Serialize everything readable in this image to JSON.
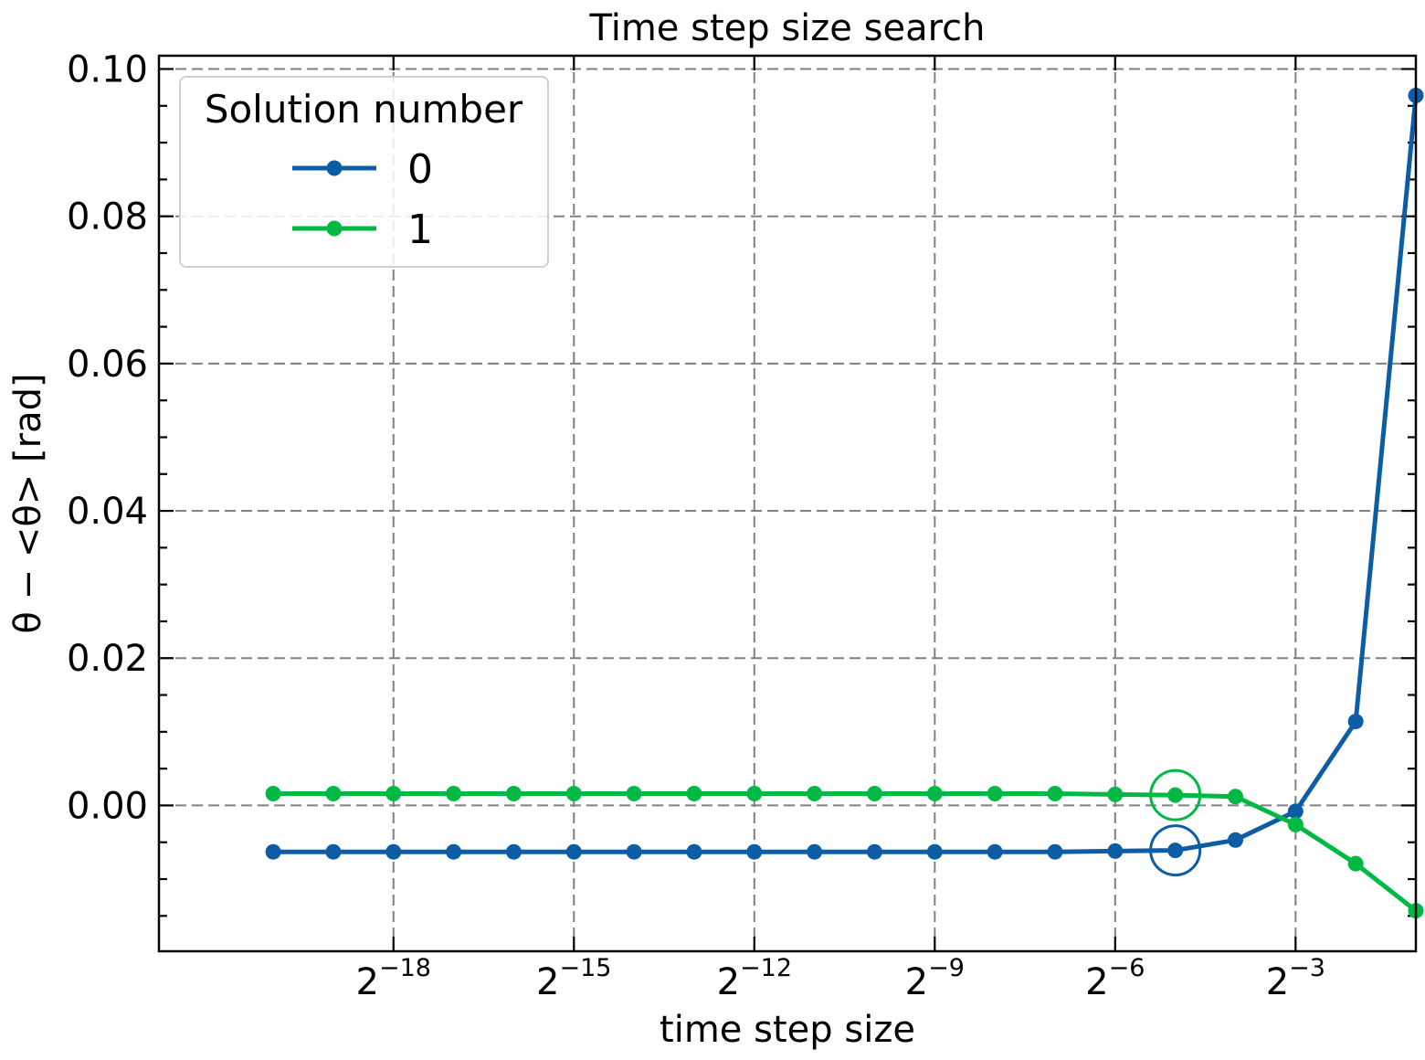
{
  "chart_data": {
    "type": "line",
    "title": "Time step size search",
    "xlabel": "time step size",
    "ylabel": "θ − <θ>  [rad]",
    "x_scale": "log2",
    "x_ticks": [
      {
        "exp": -18,
        "base": "2",
        "power": "−18"
      },
      {
        "exp": -15,
        "base": "2",
        "power": "−15"
      },
      {
        "exp": -12,
        "base": "2",
        "power": "−12"
      },
      {
        "exp": -9,
        "base": "2",
        "power": "−9"
      },
      {
        "exp": -6,
        "base": "2",
        "power": "−6"
      },
      {
        "exp": -3,
        "base": "2",
        "power": "−3"
      }
    ],
    "xlim_exp": [
      -21.9,
      -1.0
    ],
    "ylim": [
      -0.0198,
      0.1018
    ],
    "y_ticks": [
      {
        "value": 0.0,
        "label": "0.00"
      },
      {
        "value": 0.02,
        "label": "0.02"
      },
      {
        "value": 0.04,
        "label": "0.04"
      },
      {
        "value": 0.06,
        "label": "0.06"
      },
      {
        "value": 0.08,
        "label": "0.08"
      },
      {
        "value": 0.1,
        "label": "0.10"
      }
    ],
    "y_minor_step": 0.005,
    "x_exponents": [
      -20,
      -19,
      -18,
      -17,
      -16,
      -15,
      -14,
      -13,
      -12,
      -11,
      -10,
      -9,
      -8,
      -7,
      -6,
      -5,
      -4,
      -3,
      -2,
      -1
    ],
    "grid": true,
    "legend": {
      "title": "Solution number",
      "position": "top-left"
    },
    "series": [
      {
        "name": "0",
        "color": "#0C5DA5",
        "values": [
          -0.0063,
          -0.0063,
          -0.0063,
          -0.0063,
          -0.0063,
          -0.0063,
          -0.0063,
          -0.0063,
          -0.0063,
          -0.0063,
          -0.0063,
          -0.0063,
          -0.0063,
          -0.0063,
          -0.0062,
          -0.0061,
          -0.0047,
          -0.0008,
          0.0114,
          0.0964
        ],
        "highlight_exp": -5
      },
      {
        "name": "1",
        "color": "#00B945",
        "values": [
          0.0016,
          0.0016,
          0.0016,
          0.0016,
          0.0016,
          0.0016,
          0.0016,
          0.0016,
          0.0016,
          0.0016,
          0.0016,
          0.0016,
          0.0016,
          0.0016,
          0.0015,
          0.0014,
          0.0012,
          -0.0026,
          -0.0079,
          -0.0143
        ],
        "highlight_exp": -5
      }
    ]
  }
}
